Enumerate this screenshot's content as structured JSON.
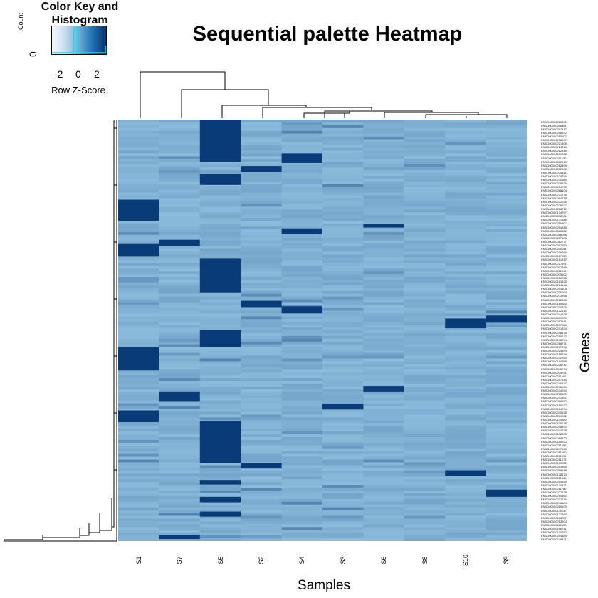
{
  "title": "Sequential palette Heatmap",
  "color_key": {
    "title": "Color Key and Histogram",
    "xlabel": "Row Z-Score",
    "ylabel": "Count",
    "y_tick": "0",
    "x_ticks": [
      "-2",
      "0",
      "2"
    ],
    "colors": [
      "#f7fbff",
      "#c6dbef",
      "#6baed6",
      "#2171b5",
      "#08306b"
    ],
    "histogram_color": "#00e5ee"
  },
  "chart_data": {
    "type": "heatmap",
    "title": "Sequential palette Heatmap",
    "xlabel": "Samples",
    "ylabel": "Genes",
    "columns": [
      "S1",
      "S7",
      "S5",
      "S2",
      "S4",
      "S3",
      "S6",
      "S8",
      "S10",
      "S9"
    ],
    "gene_ids": [
      "ENSG00000220891",
      "ENSG00000286481",
      "ENSG00000287417",
      "ENSG00000258932",
      "ENSG00000210607",
      "ENSG00000278097",
      "ENSG00000221308",
      "ENSG00000214819",
      "ENSG00000212546",
      "ENSG00000151365",
      "ENSG00000211030",
      "ENSG00000220913",
      "ENSG00000212499",
      "ENSG00000252625",
      "ENSG00000224141",
      "ENSG00000108759",
      "ENSG00000270089",
      "ENSG00000229975",
      "ENSG00000254790",
      "ENSG00000268104",
      "ENSG00000271776",
      "ENSG00000264438",
      "ENSG00000222025",
      "ENSG00000229627",
      "ENSG00000258712",
      "ENSG00000134757",
      "ENSG00000208782",
      "ENSG00000171346",
      "ENSG00000256807",
      "ENSG00000254846",
      "ENSG00000286452",
      "ENSG00000266088",
      "ENSG00000287460",
      "ENSG00000062277",
      "ENSG00000267550",
      "ENSG00000250041",
      "ENSG00000236069",
      "ENSG00000267029",
      "ENSG00000181817",
      "ENSG00000227591",
      "ENSG00000207589",
      "ENSG00000211946",
      "ENSG00000205602",
      "ENSG00000212766",
      "ENSG00000163825",
      "ENSG00000214146",
      "ENSG00000254109",
      "ENSG00000236054",
      "ENSG00000273956",
      "ENSG00000222560",
      "ENSG00000160180",
      "ENSG00000230825",
      "ENSG00000172116",
      "ENSG00000244528",
      "ENSG00000281209",
      "ENSG00000257541",
      "ENSG00000257288",
      "ENSG00000271824",
      "ENSG00000248475",
      "ENSG00000210672",
      "ENSG00000198074",
      "ENSG00000218271",
      "ENSG00000207376",
      "ENSG00000224594",
      "ENSG00000158639",
      "ENSG00000272769",
      "ENSG00000184059",
      "ENSG00000228742",
      "ENSG00000046774",
      "ENSG00000204791",
      "ENSG00000211062",
      "ENSG00000257443",
      "ENSG00000240677",
      "ENSG00000236669",
      "ENSG00000234254",
      "ENSG00000272100",
      "ENSG00000271551",
      "ENSG00000068552",
      "ENSG00000165072",
      "ENSG00000164794",
      "ENSG00000230638",
      "ENSG00000210022",
      "ENSG00000100382",
      "ENSG00000106138",
      "ENSG00000248590",
      "ENSG00000243238",
      "ENSG00000108700",
      "ENSG00000268423",
      "ENSG00000180020",
      "ENSG00000211089",
      "ENSG00000247345",
      "ENSG00000211660",
      "ENSG00000211892",
      "ENSG00000211673",
      "ENSG00000169222",
      "ENSG00000253465",
      "ENSG00000258548",
      "ENSG00000128573",
      "ENSG00000211666",
      "ENSG00000210499",
      "ENSG00000170421",
      "ENSG00000211789",
      "ENSG00000232628",
      "ENSG00000214360",
      "ENSG00000222276",
      "ENSG00000248184",
      "ENSG00000219609",
      "ENSG00000130247",
      "ENSG00000132465",
      "ENSG00000188257",
      "ENSG00000213904",
      "ENSG00000112658",
      "ENSG00000166741",
      "ENSG00000170752",
      "ENSG00000254484",
      "ENSG00000108821"
    ],
    "palette": [
      "#8cbcdc",
      "#083b78"
    ],
    "high_blocks": [
      {
        "column": "S1",
        "row_start": 0.19,
        "row_end": 0.24
      },
      {
        "column": "S1",
        "row_start": 0.295,
        "row_end": 0.325
      },
      {
        "column": "S1",
        "row_start": 0.54,
        "row_end": 0.595
      },
      {
        "column": "S1",
        "row_start": 0.69,
        "row_end": 0.718
      },
      {
        "column": "S5",
        "row_start": 0.0,
        "row_end": 0.1
      },
      {
        "column": "S5",
        "row_start": 0.13,
        "row_end": 0.155
      },
      {
        "column": "S5",
        "row_start": 0.33,
        "row_end": 0.41
      },
      {
        "column": "S5",
        "row_start": 0.5,
        "row_end": 0.54
      },
      {
        "column": "S5",
        "row_start": 0.715,
        "row_end": 0.815
      },
      {
        "column": "S5",
        "row_start": 0.855,
        "row_end": 0.866
      },
      {
        "column": "S5",
        "row_start": 0.895,
        "row_end": 0.908
      },
      {
        "column": "S5",
        "row_start": 0.93,
        "row_end": 0.942
      },
      {
        "column": "S7",
        "row_start": 0.285,
        "row_end": 0.3
      },
      {
        "column": "S7",
        "row_start": 0.645,
        "row_end": 0.668
      },
      {
        "column": "S7",
        "row_start": 0.985,
        "row_end": 0.995
      },
      {
        "column": "S2",
        "row_start": 0.11,
        "row_end": 0.125
      },
      {
        "column": "S2",
        "row_start": 0.43,
        "row_end": 0.445
      },
      {
        "column": "S2",
        "row_start": 0.815,
        "row_end": 0.828
      },
      {
        "column": "S4",
        "row_start": 0.08,
        "row_end": 0.103
      },
      {
        "column": "S4",
        "row_start": 0.258,
        "row_end": 0.272
      },
      {
        "column": "S4",
        "row_start": 0.443,
        "row_end": 0.46
      },
      {
        "column": "S3",
        "row_start": 0.675,
        "row_end": 0.688
      },
      {
        "column": "S6",
        "row_start": 0.248,
        "row_end": 0.256
      },
      {
        "column": "S6",
        "row_start": 0.632,
        "row_end": 0.645
      },
      {
        "column": "S10",
        "row_start": 0.472,
        "row_end": 0.495
      },
      {
        "column": "S10",
        "row_start": 0.832,
        "row_end": 0.845
      },
      {
        "column": "S9",
        "row_start": 0.465,
        "row_end": 0.482
      },
      {
        "column": "S9",
        "row_start": 0.878,
        "row_end": 0.895
      }
    ]
  }
}
